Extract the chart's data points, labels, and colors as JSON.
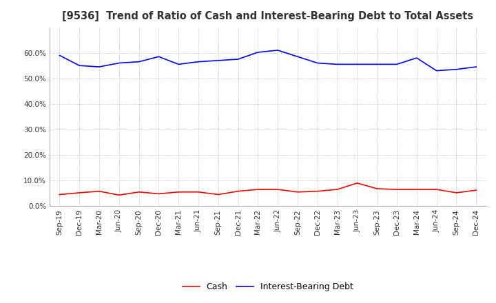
{
  "title": "[9536]  Trend of Ratio of Cash and Interest-Bearing Debt to Total Assets",
  "x_labels": [
    "Sep-19",
    "Dec-19",
    "Mar-20",
    "Jun-20",
    "Sep-20",
    "Dec-20",
    "Mar-21",
    "Jun-21",
    "Sep-21",
    "Dec-21",
    "Mar-22",
    "Jun-22",
    "Sep-22",
    "Dec-22",
    "Mar-23",
    "Jun-23",
    "Sep-23",
    "Dec-23",
    "Mar-24",
    "Jun-24",
    "Sep-24",
    "Dec-24"
  ],
  "cash": [
    4.5,
    5.2,
    5.8,
    4.3,
    5.5,
    4.8,
    5.5,
    5.5,
    4.5,
    5.8,
    6.5,
    6.5,
    5.5,
    5.8,
    6.5,
    9.0,
    6.8,
    6.5,
    6.5,
    6.5,
    5.2,
    6.2
  ],
  "interest_bearing_debt": [
    59.0,
    55.0,
    54.5,
    56.0,
    56.5,
    58.5,
    55.5,
    56.5,
    57.0,
    57.5,
    60.2,
    61.0,
    58.5,
    56.0,
    55.5,
    55.5,
    55.5,
    55.5,
    58.0,
    53.0,
    53.5,
    54.5
  ],
  "cash_color": "#ff0000",
  "debt_color": "#0000ff",
  "ylim": [
    0.0,
    70.0
  ],
  "yticks": [
    0.0,
    10.0,
    20.0,
    30.0,
    40.0,
    50.0,
    60.0
  ],
  "legend_cash": "Cash",
  "legend_debt": "Interest-Bearing Debt",
  "background_color": "#ffffff",
  "grid_color": "#aaaaaa",
  "title_fontsize": 10.5,
  "tick_fontsize": 7.5,
  "legend_fontsize": 9
}
